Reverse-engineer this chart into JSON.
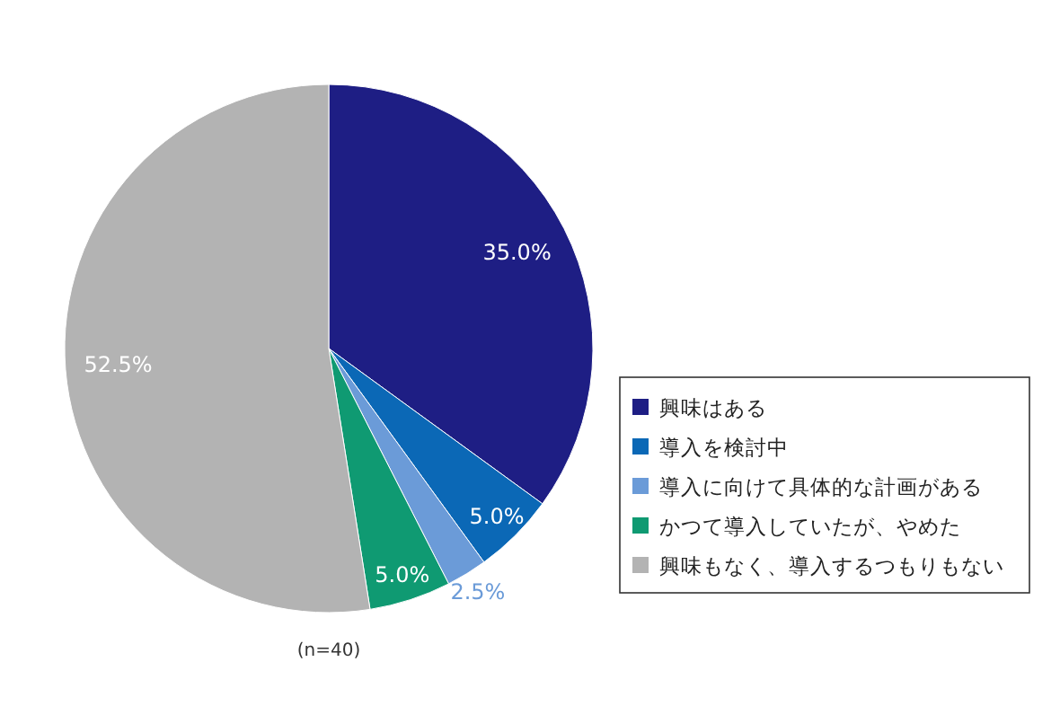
{
  "chart_data": {
    "type": "pie",
    "categories": [
      "興味はある",
      "導入を検討中",
      "導入に向けて具体的な計画がある",
      "かつて導入していたが、やめた",
      "興味もなく、導入するつもりもない"
    ],
    "values": [
      35.0,
      5.0,
      2.5,
      5.0,
      52.5
    ],
    "value_labels": [
      "35.0%",
      "5.0%",
      "2.5%",
      "5.0%",
      "52.5%"
    ],
    "colors": [
      "#1e1e84",
      "#0b68b6",
      "#6b9bd8",
      "#0f9a72",
      "#b3b3b3"
    ],
    "annotations": [
      "(n=40)"
    ],
    "legend": "bottom right"
  }
}
